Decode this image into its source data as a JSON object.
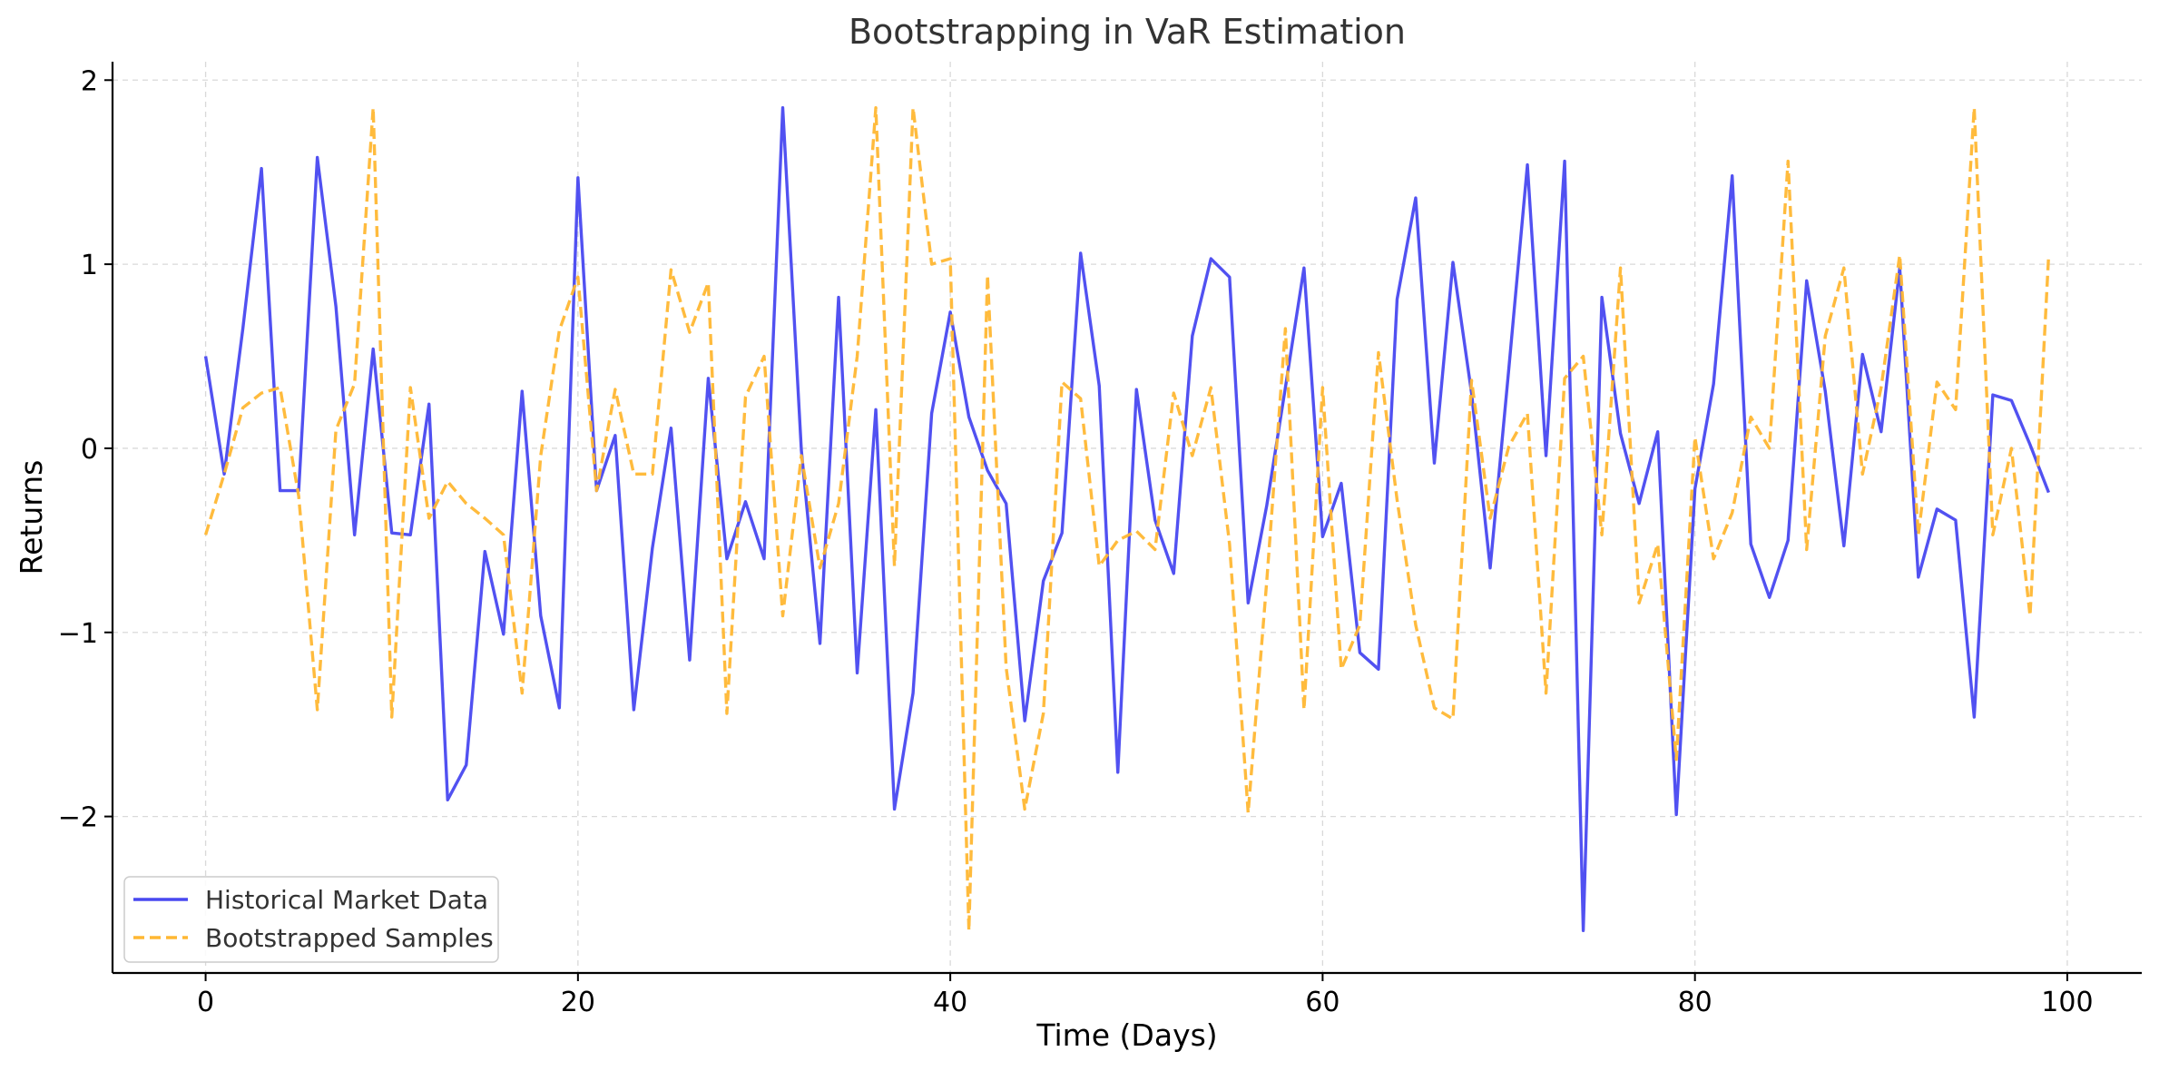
{
  "chart_data": {
    "type": "line",
    "title": "Bootstrapping in VaR Estimation",
    "xlabel": "Time (Days)",
    "ylabel": "Returns",
    "xlim": [
      -5,
      104
    ],
    "ylim": [
      -2.85,
      2.1
    ],
    "x_ticks": [
      0,
      20,
      40,
      60,
      80,
      100
    ],
    "x_tick_labels": [
      "0",
      "20",
      "40",
      "60",
      "80",
      "100"
    ],
    "y_ticks": [
      -2,
      -1,
      0,
      1,
      2
    ],
    "y_tick_labels": [
      "−2",
      "−1",
      "0",
      "1",
      "2"
    ],
    "grid": true,
    "legend_position": "lower-left",
    "x": [
      0,
      1,
      2,
      3,
      4,
      5,
      6,
      7,
      8,
      9,
      10,
      11,
      12,
      13,
      14,
      15,
      16,
      17,
      18,
      19,
      20,
      21,
      22,
      23,
      24,
      25,
      26,
      27,
      28,
      29,
      30,
      31,
      32,
      33,
      34,
      35,
      36,
      37,
      38,
      39,
      40,
      41,
      42,
      43,
      44,
      45,
      46,
      47,
      48,
      49,
      50,
      51,
      52,
      53,
      54,
      55,
      56,
      57,
      58,
      59,
      60,
      61,
      62,
      63,
      64,
      65,
      66,
      67,
      68,
      69,
      70,
      71,
      72,
      73,
      74,
      75,
      76,
      77,
      78,
      79,
      80,
      81,
      82,
      83,
      84,
      85,
      86,
      87,
      88,
      89,
      90,
      91,
      92,
      93,
      94,
      95,
      96,
      97,
      98,
      99
    ],
    "series": [
      {
        "name": "Historical Market Data",
        "color": "#4848f0",
        "style": "solid",
        "values": [
          0.5,
          -0.14,
          0.65,
          1.52,
          -0.23,
          -0.23,
          1.58,
          0.77,
          -0.47,
          0.54,
          -0.46,
          -0.47,
          0.24,
          -1.91,
          -1.72,
          -0.56,
          -1.01,
          0.31,
          -0.91,
          -1.41,
          1.47,
          -0.23,
          0.07,
          -1.42,
          -0.54,
          0.11,
          -1.15,
          0.38,
          -0.6,
          -0.29,
          -0.6,
          1.85,
          -0.01,
          -1.06,
          0.82,
          -1.22,
          0.21,
          -1.96,
          -1.33,
          0.19,
          0.74,
          0.17,
          -0.12,
          -0.3,
          -1.48,
          -0.72,
          -0.46,
          1.06,
          0.34,
          -1.76,
          0.32,
          -0.39,
          -0.68,
          0.61,
          1.03,
          0.93,
          -0.84,
          -0.31,
          0.33,
          0.98,
          -0.48,
          -0.19,
          -1.11,
          -1.2,
          0.81,
          1.36,
          -0.08,
          1.01,
          0.3,
          -0.65,
          0.43,
          1.54,
          -0.04,
          1.56,
          -2.62,
          0.82,
          0.08,
          -0.3,
          0.09,
          -1.99,
          -0.22,
          0.35,
          1.48,
          -0.52,
          -0.81,
          -0.5,
          0.91,
          0.31,
          -0.53,
          0.51,
          0.09,
          0.98,
          -0.7,
          -0.33,
          -0.39,
          -1.46,
          0.29,
          0.26,
          0.02,
          -0.24
        ]
      },
      {
        "name": "Bootstrapped Samples",
        "color": "#ffb733",
        "style": "dashed",
        "values": [
          -0.47,
          -0.14,
          0.22,
          0.3,
          0.33,
          -0.26,
          -1.42,
          0.1,
          0.35,
          1.85,
          -1.46,
          0.33,
          -0.38,
          -0.18,
          -0.3,
          -0.38,
          -0.47,
          -1.33,
          -0.04,
          0.64,
          0.93,
          -0.23,
          0.32,
          -0.14,
          -0.14,
          0.97,
          0.63,
          0.9,
          -1.44,
          0.28,
          0.5,
          -0.91,
          -0.04,
          -0.65,
          -0.3,
          0.5,
          1.85,
          -0.64,
          1.85,
          1.0,
          1.03,
          -2.62,
          0.94,
          -1.19,
          -1.96,
          -1.44,
          0.36,
          0.27,
          -0.64,
          -0.5,
          -0.45,
          -0.55,
          0.3,
          -0.04,
          0.33,
          -0.52,
          -1.98,
          -0.72,
          0.65,
          -1.42,
          0.33,
          -1.2,
          -0.96,
          0.52,
          -0.28,
          -0.96,
          -1.41,
          -1.47,
          0.37,
          -0.38,
          0.01,
          0.19,
          -1.33,
          0.38,
          0.5,
          -0.47,
          0.98,
          -0.84,
          -0.52,
          -1.69,
          0.06,
          -0.6,
          -0.35,
          0.17,
          0.0,
          1.56,
          -0.55,
          0.61,
          0.98,
          -0.14,
          0.33,
          1.05,
          -0.47,
          0.36,
          0.21,
          1.85,
          -0.47,
          0.0,
          -0.91,
          1.05
        ]
      }
    ]
  }
}
